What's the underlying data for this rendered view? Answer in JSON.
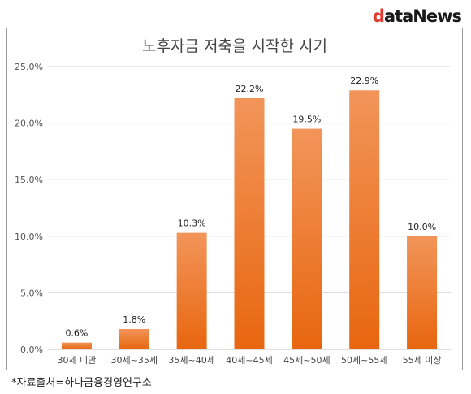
{
  "brand": {
    "lead": "d",
    "rest": "ataNews"
  },
  "source": "*자료출처=하나금융경영연구소",
  "chart_data": {
    "type": "bar",
    "title": "노후자금 저축을 시작한 시기",
    "categories": [
      "30세 미만",
      "30세~35세",
      "35세~40세",
      "40세~45세",
      "45세~50세",
      "50세~55세",
      "55세 이상"
    ],
    "values": [
      0.6,
      1.8,
      10.3,
      22.2,
      19.5,
      22.9,
      10.0
    ],
    "value_labels": [
      "0.6%",
      "1.8%",
      "10.3%",
      "22.2%",
      "19.5%",
      "22.9%",
      "10.0%"
    ],
    "y_ticks": [
      0,
      5,
      10,
      15,
      20,
      25
    ],
    "y_tick_labels": [
      "0.0%",
      "5.0%",
      "10.0%",
      "15.0%",
      "20.0%",
      "25.0%"
    ],
    "ylim": [
      0,
      25
    ],
    "grid": true,
    "legend": "none",
    "bar_color_top": "#f2955a",
    "bar_color_bottom": "#e8660f"
  }
}
